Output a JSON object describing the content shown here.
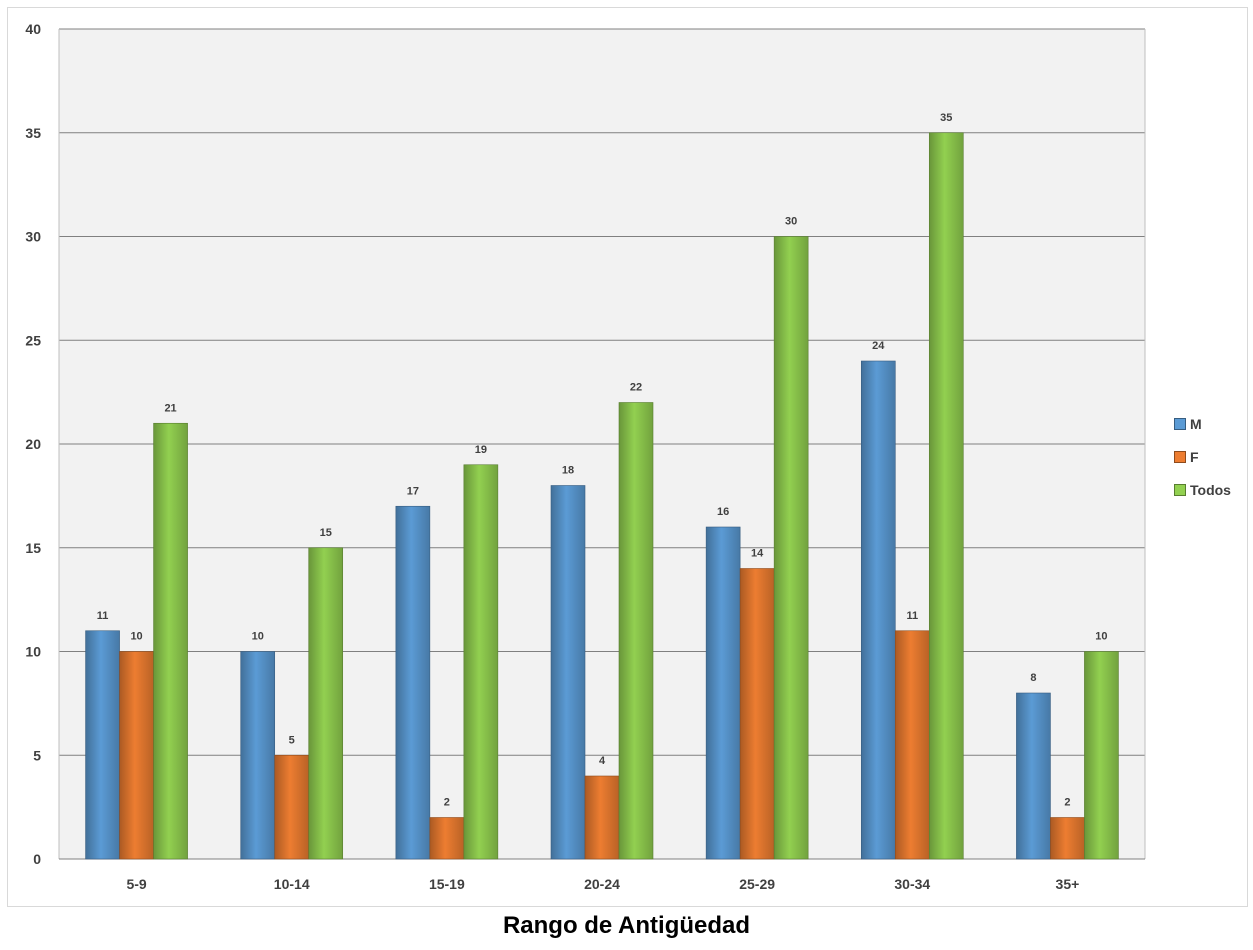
{
  "chart_data": {
    "type": "bar",
    "title": "",
    "xlabel": "Rango de Antigüedad",
    "ylabel": "",
    "categories": [
      "5-9",
      "10-14",
      "15-19",
      "20-24",
      "25-29",
      "30-34",
      "35+"
    ],
    "series": [
      {
        "name": "M",
        "values": [
          11,
          10,
          17,
          18,
          16,
          24,
          8
        ],
        "color": "#5b9bd5"
      },
      {
        "name": "F",
        "values": [
          10,
          5,
          2,
          4,
          14,
          11,
          2
        ],
        "color": "#ed7d31"
      },
      {
        "name": "Todos",
        "values": [
          21,
          15,
          19,
          22,
          30,
          35,
          10
        ],
        "color": "#92d050"
      }
    ],
    "ylim": [
      0,
      40
    ],
    "yticks": [
      0,
      5,
      10,
      15,
      20,
      25,
      30,
      35,
      40
    ],
    "grid": true,
    "legend_position": "right",
    "data_labels": true,
    "plot_background": "#f2f2f2",
    "gridline_color": "#808080"
  }
}
